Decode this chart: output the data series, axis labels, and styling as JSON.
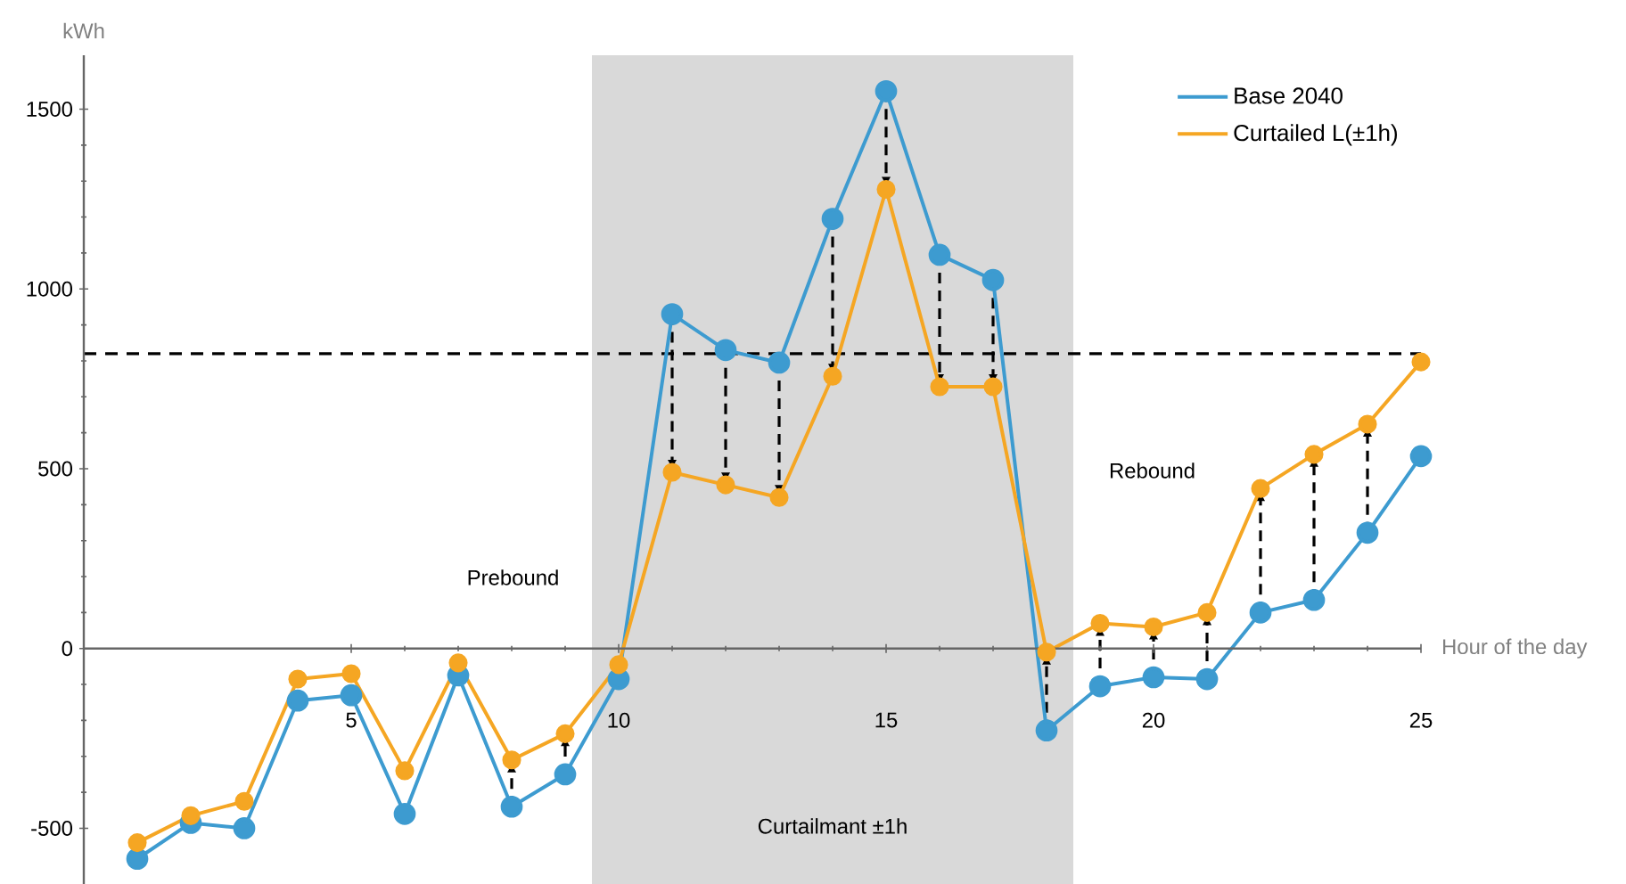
{
  "chart_data": {
    "type": "line",
    "xlabel": "Hour of the day",
    "ylabel": "kWh",
    "x": [
      1,
      2,
      3,
      4,
      5,
      6,
      7,
      8,
      9,
      10,
      11,
      12,
      13,
      14,
      15,
      16,
      17,
      18,
      19,
      20,
      21,
      22,
      23,
      24,
      25
    ],
    "series": [
      {
        "name": "Base 2040",
        "color": "#3d9bd0",
        "values": [
          -585,
          -485,
          -500,
          -145,
          -130,
          -460,
          -75,
          -440,
          -350,
          -85,
          930,
          830,
          795,
          1195,
          1550,
          1095,
          1025,
          -228,
          -105,
          -80,
          -85,
          100,
          135,
          322,
          535
        ]
      },
      {
        "name": "Curtailed L(±1h)",
        "color": "#f5a623",
        "values": [
          -540,
          -465,
          -425,
          -85,
          -70,
          -340,
          -40,
          -310,
          -237,
          -45,
          490,
          455,
          420,
          757,
          1277,
          728,
          728,
          -10,
          70,
          60,
          100,
          445,
          540,
          624,
          797
        ]
      }
    ],
    "xlim": [
      0,
      25
    ],
    "ylim": [
      -655,
      1650
    ],
    "xticks": [
      5,
      10,
      15,
      20,
      25
    ],
    "yticks": [
      -500,
      0,
      500,
      1000,
      1500
    ],
    "ref_lines": [
      {
        "axis": "y",
        "value": 820,
        "color": "#000000",
        "line_style": "dashed"
      }
    ],
    "bands": [
      {
        "axis": "x",
        "from": 9.5,
        "to": 18.5,
        "label": "Curtailmant ±1h",
        "color": "#d9d9d9"
      }
    ],
    "annotations": [
      "Prebound",
      "Rebound"
    ],
    "marker": "circle",
    "line_style": "solid",
    "legend": "top right"
  }
}
